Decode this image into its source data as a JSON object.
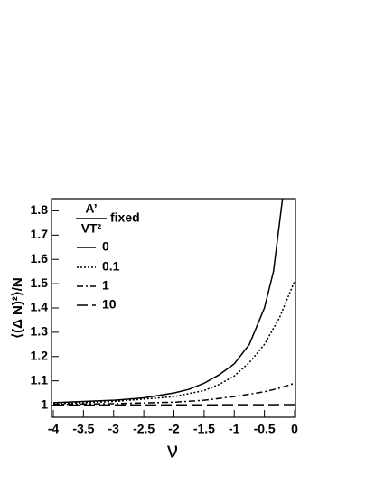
{
  "chart_data": {
    "type": "line",
    "x_label": "ν",
    "y_label": "⟨(Δ N)²⟩/N",
    "legend_title": {
      "numerator": "A’",
      "denominator": "VT²",
      "suffix": "fixed"
    },
    "xlim": [
      -4,
      0
    ],
    "ylim": [
      0.95,
      1.85
    ],
    "xticks": [
      -4,
      -3.5,
      -3,
      -2.5,
      -2,
      -1.5,
      -1,
      -0.5,
      0
    ],
    "yticks": [
      1,
      1.1,
      1.2,
      1.3,
      1.4,
      1.5,
      1.6,
      1.7,
      1.8
    ],
    "series": [
      {
        "name": "0",
        "color": "#000000",
        "dash": "solid",
        "x": [
          -4,
          -3.5,
          -3,
          -2.5,
          -2,
          -1.75,
          -1.5,
          -1.25,
          -1,
          -0.75,
          -0.5,
          -0.35,
          -0.2
        ],
        "values": [
          1.01,
          1.015,
          1.02,
          1.03,
          1.05,
          1.065,
          1.09,
          1.125,
          1.17,
          1.25,
          1.4,
          1.55,
          1.85
        ]
      },
      {
        "name": "0.1",
        "color": "#000000",
        "dash": "dotted",
        "x": [
          -4,
          -3.5,
          -3,
          -2.5,
          -2,
          -1.5,
          -1.25,
          -1,
          -0.75,
          -0.5,
          -0.25,
          0
        ],
        "values": [
          1.005,
          1.01,
          1.015,
          1.025,
          1.035,
          1.06,
          1.085,
          1.12,
          1.175,
          1.25,
          1.36,
          1.51
        ]
      },
      {
        "name": "1",
        "color": "#000000",
        "dash": "dashdot",
        "x": [
          -4,
          -3,
          -2,
          -1.5,
          -1,
          -0.5,
          -0.25,
          0
        ],
        "values": [
          1.003,
          1.006,
          1.012,
          1.02,
          1.035,
          1.055,
          1.07,
          1.09
        ]
      },
      {
        "name": "10",
        "color": "#000000",
        "dash": "dashed",
        "x": [
          -4,
          -2,
          0
        ],
        "values": [
          1.0,
          1.001,
          1.002
        ]
      }
    ]
  }
}
